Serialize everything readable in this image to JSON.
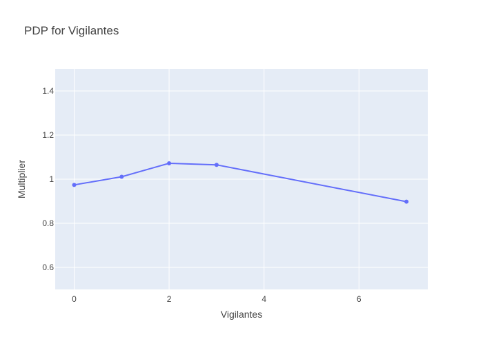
{
  "chart_data": {
    "type": "line",
    "title": "PDP for Vigilantes",
    "xlabel": "Vigilantes",
    "ylabel": "Multiplier",
    "x": [
      0,
      1,
      2,
      3,
      7
    ],
    "series": [
      {
        "values": [
          0.974,
          1.011,
          1.072,
          1.065,
          0.898
        ]
      }
    ],
    "xlim": [
      -0.4,
      7.45
    ],
    "ylim": [
      0.5,
      1.5
    ],
    "x_ticks": [
      0,
      2,
      4,
      6
    ],
    "x_tick_labels": [
      "0",
      "2",
      "4",
      "6"
    ],
    "y_ticks": [
      0.6,
      0.8,
      1.0,
      1.2,
      1.4
    ],
    "y_tick_labels": [
      "0.6",
      "0.8",
      "1",
      "1.2",
      "1.4"
    ],
    "grid": true,
    "legend": "none",
    "colors": {
      "line": "#636efa",
      "plot_background": "#e5ecf6",
      "grid": "#ffffff",
      "title": "#444444",
      "tick_text": "#444444"
    }
  }
}
